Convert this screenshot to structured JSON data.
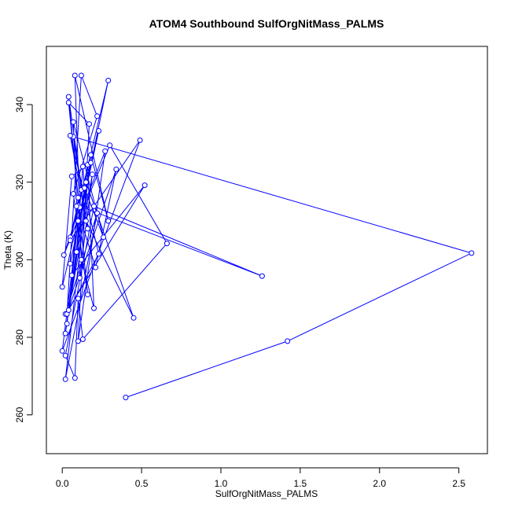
{
  "chart_data": {
    "type": "line",
    "title": "ATOM4 Southbound SulfOrgNitMass_PALMS",
    "xlabel": "SulfOrgNitMass_PALMS",
    "ylabel": "Theta (K)",
    "xlim": [
      -0.1,
      2.68
    ],
    "ylim": [
      250,
      355
    ],
    "xticks": [
      0.0,
      0.5,
      1.0,
      1.5,
      2.0,
      2.5
    ],
    "xtick_labels": [
      "0.0",
      "0.5",
      "1.0",
      "1.5",
      "2.0",
      "2.5"
    ],
    "yticks": [
      260,
      280,
      300,
      320,
      340
    ],
    "ytick_labels": [
      "260",
      "280",
      "300",
      "320",
      "340"
    ],
    "grid": false,
    "markers": "open-circle",
    "series": [
      {
        "color": "#0000ff",
        "points": [
          [
            0.4,
            264.5
          ],
          [
            1.42,
            279.0
          ],
          [
            2.58,
            301.7
          ],
          [
            0.07,
            331.7
          ],
          [
            0.12,
            318.0
          ],
          [
            0.05,
            305.8
          ],
          [
            0.1,
            314.0
          ],
          [
            1.26,
            295.8
          ],
          [
            0.2,
            313.8
          ],
          [
            0.02,
            275.3
          ],
          [
            0.08,
            269.5
          ],
          [
            0.1,
            290.0
          ],
          [
            0.13,
            279.5
          ],
          [
            0.66,
            304.2
          ],
          [
            0.3,
            329.5
          ],
          [
            0.1,
            310.0
          ],
          [
            0.03,
            283.5
          ],
          [
            0.15,
            320.0
          ],
          [
            0.45,
            285.0
          ],
          [
            0.15,
            310.0
          ],
          [
            0.04,
            342.0
          ],
          [
            0.1,
            316.0
          ],
          [
            0.06,
            296.0
          ],
          [
            0.52,
            319.2
          ],
          [
            0.02,
            286.0
          ],
          [
            0.22,
            312.0
          ],
          [
            0.02,
            269.2
          ],
          [
            0.18,
            327.0
          ],
          [
            0.29,
            310.0
          ],
          [
            0.08,
            347.5
          ],
          [
            0.12,
            300.0
          ],
          [
            0.2,
            287.5
          ],
          [
            0.16,
            324.5
          ],
          [
            0.06,
            321.5
          ],
          [
            0.0,
            293.0
          ],
          [
            0.23,
            333.2
          ],
          [
            0.05,
            299.0
          ],
          [
            0.29,
            346.2
          ],
          [
            0.05,
            305.0
          ],
          [
            0.49,
            330.8
          ],
          [
            0.0,
            276.5
          ],
          [
            0.11,
            313.5
          ],
          [
            0.01,
            301.2
          ],
          [
            0.27,
            328.0
          ],
          [
            0.1,
            279.0
          ],
          [
            0.17,
            335.0
          ],
          [
            0.04,
            340.5
          ],
          [
            0.16,
            291.0
          ],
          [
            0.07,
            317.0
          ],
          [
            0.22,
            337.0
          ],
          [
            0.12,
            347.5
          ],
          [
            0.03,
            286.0
          ],
          [
            0.34,
            323.3
          ],
          [
            0.21,
            298.0
          ],
          [
            0.09,
            313.8
          ],
          [
            0.18,
            325.0
          ],
          [
            0.02,
            281.0
          ],
          [
            0.14,
            318.5
          ],
          [
            0.26,
            305.8
          ],
          [
            0.07,
            335.5
          ],
          [
            0.11,
            295.3
          ],
          [
            0.19,
            322.0
          ],
          [
            0.04,
            287.0
          ],
          [
            0.23,
            301.5
          ],
          [
            0.05,
            332.0
          ],
          [
            0.16,
            308.0
          ],
          [
            0.13,
            324.0
          ],
          [
            0.09,
            302.0
          ]
        ]
      }
    ]
  }
}
